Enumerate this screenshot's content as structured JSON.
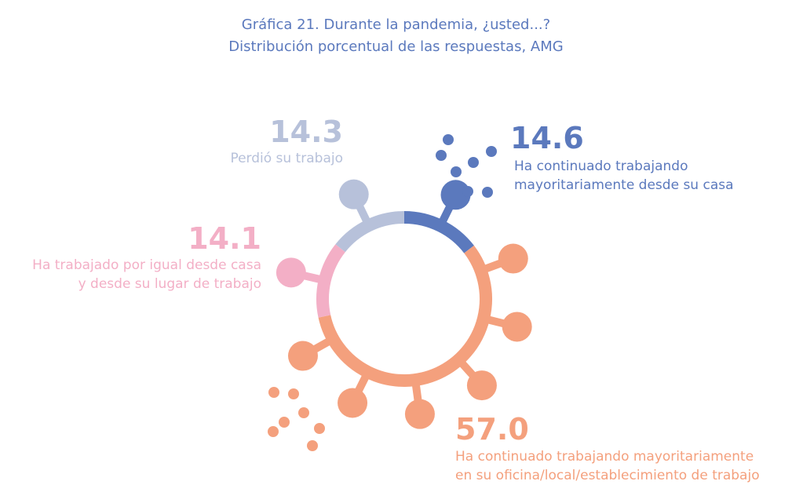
{
  "title_line1": "Gráfica 21. Durante la pandemia, ¿usted...?",
  "title_line2": "Distribución porcentual de las respuestas, AMG",
  "chart_data": {
    "type": "pie",
    "title": "Gráfica 21. Durante la pandemia, ¿usted...?",
    "subtitle": "Distribución porcentual de las respuestas, AMG",
    "unit": "%",
    "slices": [
      {
        "value": 14.6,
        "label_line1": "Ha continuado trabajando",
        "label_line2": "mayoritariamente desde su casa",
        "color": "#5b79bd"
      },
      {
        "value": 57.0,
        "label_line1": "Ha continuado trabajando mayoritariamente",
        "label_line2": "en su oficina/local/establecimiento de trabajo",
        "color": "#f4a07d"
      },
      {
        "value": 14.1,
        "label_line1": "Ha trabajado por igual desde casa",
        "label_line2": "y desde su lugar de trabajo",
        "color": "#f3afc6"
      },
      {
        "value": 14.3,
        "label_line1": "Perdió su trabajo",
        "label_line2": "",
        "color": "#b7c1da"
      }
    ]
  }
}
